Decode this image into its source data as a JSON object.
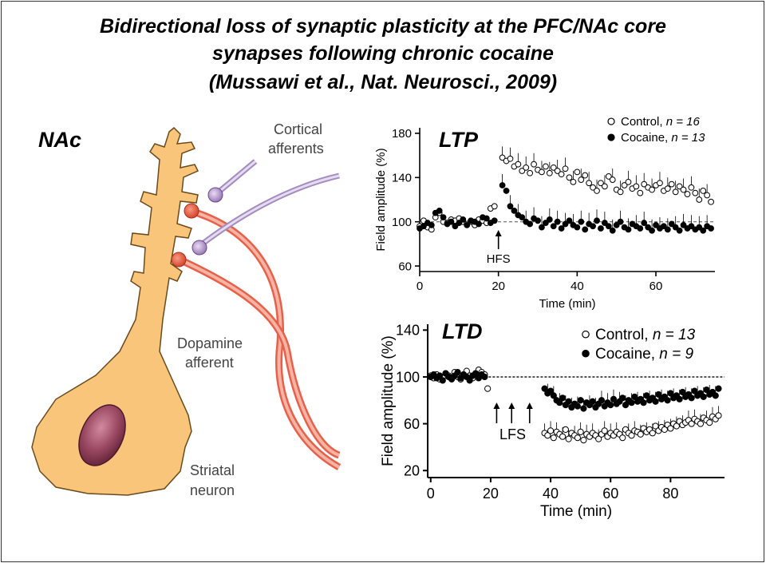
{
  "title": {
    "line1": "Bidirectional loss of synaptic plasticity at the PFC/NAc core",
    "line2": "synapses following chronic cocaine",
    "line3": "(Mussawi et al., Nat. Neurosci., 2009)"
  },
  "diagram": {
    "region_label": "NAc",
    "cortical_label_1": "Cortical",
    "cortical_label_2": "afferents",
    "dopamine_label_1": "Dopamine",
    "dopamine_label_2": "afferent",
    "neuron_label_1": "Striatal",
    "neuron_label_2": "neuron"
  },
  "chart_data": [
    {
      "type": "scatter",
      "panel_label": "LTP",
      "xlabel": "Time (min)",
      "ylabel": "Field amplitude (%)",
      "xlim": [
        0,
        75
      ],
      "ylim": [
        55,
        185
      ],
      "xticks": [
        "0",
        "20",
        "40",
        "60"
      ],
      "yticks": [
        "60",
        "100",
        "140",
        "180"
      ],
      "baseline": 100,
      "stimulus": {
        "label": "HFS",
        "x": 20
      },
      "legend": [
        {
          "marker": "○",
          "text": "Control, ",
          "n": "n = 16"
        },
        {
          "marker": "●",
          "text": "Cocaine, ",
          "n": "n = 13"
        }
      ],
      "series": [
        {
          "name": "Control",
          "marker": "open",
          "x": [
            0,
            1,
            2,
            3,
            4,
            5,
            6,
            7,
            8,
            9,
            10,
            11,
            12,
            13,
            14,
            15,
            16,
            17,
            18,
            19,
            21,
            22,
            23,
            24,
            25,
            26,
            27,
            28,
            29,
            30,
            31,
            32,
            33,
            34,
            35,
            36,
            37,
            38,
            39,
            40,
            41,
            42,
            43,
            44,
            45,
            46,
            47,
            48,
            49,
            50,
            51,
            52,
            53,
            54,
            55,
            56,
            57,
            58,
            59,
            60,
            61,
            62,
            63,
            64,
            65,
            66,
            67,
            68,
            69,
            70,
            71,
            72,
            73,
            74
          ],
          "y": [
            96,
            101,
            95,
            93,
            104,
            108,
            100,
            99,
            102,
            101,
            103,
            100,
            98,
            100,
            97,
            102,
            101,
            99,
            112,
            114,
            158,
            155,
            157,
            150,
            152,
            146,
            149,
            144,
            152,
            147,
            145,
            150,
            144,
            149,
            146,
            143,
            148,
            140,
            136,
            145,
            138,
            142,
            135,
            131,
            128,
            135,
            132,
            141,
            138,
            129,
            127,
            133,
            136,
            130,
            132,
            126,
            134,
            131,
            129,
            133,
            135,
            128,
            130,
            134,
            127,
            132,
            129,
            125,
            131,
            126,
            120,
            128,
            124,
            118
          ]
        },
        {
          "name": "Cocaine",
          "marker": "filled",
          "x": [
            0,
            1,
            2,
            3,
            4,
            5,
            6,
            7,
            8,
            9,
            10,
            11,
            12,
            13,
            14,
            15,
            16,
            17,
            18,
            19,
            21,
            22,
            23,
            24,
            25,
            26,
            27,
            28,
            29,
            30,
            31,
            32,
            33,
            34,
            35,
            36,
            37,
            38,
            39,
            40,
            41,
            42,
            43,
            44,
            45,
            46,
            47,
            48,
            49,
            50,
            51,
            52,
            53,
            54,
            55,
            56,
            57,
            58,
            59,
            60,
            61,
            62,
            63,
            64,
            65,
            66,
            67,
            68,
            69,
            70,
            71,
            72,
            73,
            74
          ],
          "y": [
            94,
            96,
            99,
            97,
            108,
            110,
            104,
            98,
            100,
            96,
            99,
            102,
            97,
            101,
            100,
            98,
            104,
            103,
            99,
            101,
            133,
            128,
            114,
            110,
            106,
            104,
            100,
            98,
            103,
            101,
            95,
            99,
            102,
            96,
            100,
            94,
            98,
            101,
            97,
            95,
            100,
            93,
            98,
            96,
            101,
            94,
            99,
            96,
            92,
            97,
            100,
            95,
            93,
            98,
            96,
            94,
            99,
            95,
            92,
            97,
            94,
            96,
            93,
            98,
            95,
            92,
            97,
            94,
            96,
            93,
            95,
            92,
            96,
            94
          ]
        }
      ]
    },
    {
      "type": "scatter",
      "panel_label": "LTD",
      "xlabel": "Time (min)",
      "ylabel": "Field amplitude (%)",
      "xlim": [
        -1,
        98
      ],
      "ylim": [
        14,
        145
      ],
      "xticks": [
        "0",
        "20",
        "40",
        "60",
        "80"
      ],
      "yticks": [
        "20",
        "60",
        "100",
        "140"
      ],
      "baseline": 100,
      "stimulus": {
        "label": "LFS",
        "x": [
          22,
          27,
          33
        ]
      },
      "legend": [
        {
          "marker": "○",
          "text": "Control, ",
          "n": "n = 13"
        },
        {
          "marker": "●",
          "text": "Cocaine, ",
          "n": "n = 9"
        }
      ],
      "series": [
        {
          "name": "Control",
          "marker": "open",
          "x": [
            0,
            1,
            2,
            3,
            4,
            5,
            6,
            7,
            8,
            9,
            10,
            11,
            12,
            13,
            14,
            15,
            16,
            17,
            18,
            19,
            38,
            39,
            40,
            41,
            42,
            43,
            44,
            45,
            46,
            47,
            48,
            49,
            50,
            51,
            52,
            53,
            54,
            55,
            56,
            57,
            58,
            59,
            60,
            61,
            62,
            63,
            64,
            65,
            66,
            67,
            68,
            69,
            70,
            71,
            72,
            73,
            74,
            75,
            76,
            77,
            78,
            79,
            80,
            81,
            82,
            83,
            84,
            85,
            86,
            87,
            88,
            89,
            90,
            91,
            92,
            93,
            94,
            95,
            96
          ],
          "y": [
            101,
            99,
            102,
            98,
            100,
            103,
            101,
            99,
            104,
            100,
            98,
            102,
            105,
            101,
            99,
            103,
            106,
            104,
            102,
            90,
            52,
            50,
            54,
            48,
            53,
            51,
            49,
            55,
            47,
            52,
            50,
            48,
            53,
            46,
            51,
            49,
            52,
            50,
            47,
            51,
            54,
            49,
            52,
            50,
            53,
            51,
            48,
            55,
            52,
            50,
            54,
            53,
            51,
            56,
            53,
            55,
            52,
            58,
            54,
            57,
            55,
            59,
            56,
            60,
            58,
            62,
            59,
            61,
            63,
            60,
            64,
            62,
            60,
            65,
            63,
            61,
            66,
            64,
            67
          ]
        },
        {
          "name": "Cocaine",
          "marker": "filled",
          "x": [
            0,
            1,
            2,
            3,
            4,
            5,
            6,
            7,
            8,
            9,
            10,
            11,
            12,
            13,
            14,
            15,
            16,
            17,
            18,
            38,
            39,
            40,
            41,
            42,
            43,
            44,
            45,
            46,
            47,
            48,
            49,
            50,
            51,
            52,
            53,
            54,
            55,
            56,
            57,
            58,
            59,
            60,
            61,
            62,
            63,
            64,
            65,
            66,
            67,
            68,
            69,
            70,
            71,
            72,
            73,
            74,
            75,
            76,
            77,
            78,
            79,
            80,
            81,
            82,
            83,
            84,
            85,
            86,
            87,
            88,
            89,
            90,
            91,
            92,
            93,
            94,
            95,
            96
          ],
          "y": [
            100,
            102,
            99,
            101,
            97,
            103,
            100,
            98,
            101,
            104,
            99,
            102,
            100,
            97,
            101,
            103,
            99,
            102,
            100,
            90,
            86,
            88,
            84,
            80,
            78,
            82,
            76,
            79,
            74,
            77,
            75,
            80,
            73,
            78,
            76,
            79,
            74,
            77,
            80,
            75,
            78,
            76,
            81,
            77,
            79,
            82,
            76,
            80,
            78,
            83,
            79,
            81,
            78,
            84,
            80,
            82,
            79,
            85,
            81,
            83,
            80,
            86,
            82,
            84,
            81,
            87,
            83,
            85,
            82,
            88,
            84,
            86,
            83,
            89,
            85,
            87,
            84,
            90
          ]
        }
      ]
    }
  ]
}
